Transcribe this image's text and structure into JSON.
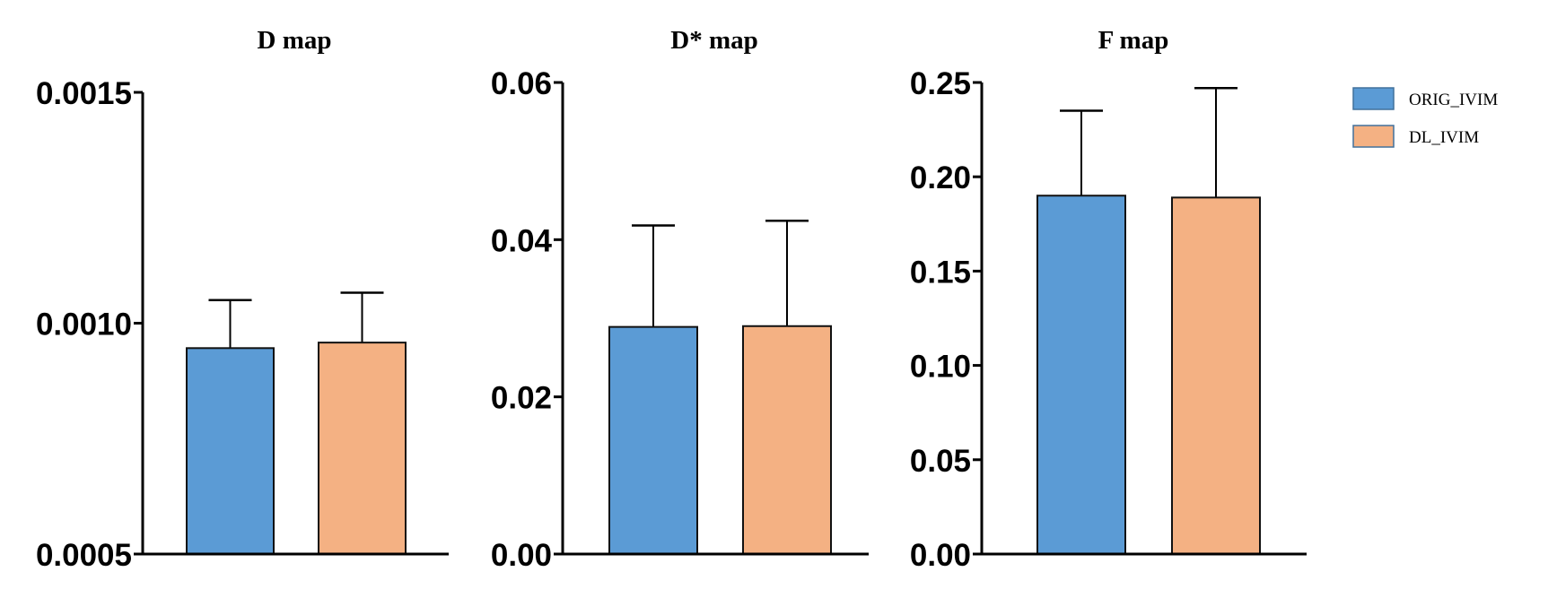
{
  "chart_data": [
    {
      "type": "bar",
      "title": "D map",
      "categories": [
        "ORIG_IVIM",
        "DL_IVIM"
      ],
      "values": [
        0.000946,
        0.000958
      ],
      "error_upper": [
        0.00105,
        0.001066
      ],
      "ylim": [
        0.0005,
        0.0015
      ],
      "yticks": [
        "0.0005",
        "0.0010",
        "0.0015"
      ],
      "ytick_values": [
        0.0005,
        0.001,
        0.0015
      ]
    },
    {
      "type": "bar",
      "title": "D* map",
      "categories": [
        "ORIG_IVIM",
        "DL_IVIM"
      ],
      "values": [
        0.0289,
        0.029
      ],
      "error_upper": [
        0.0418,
        0.0424
      ],
      "ylim": [
        0,
        0.06
      ],
      "yticks": [
        "0.00",
        "0.02",
        "0.04",
        "0.06"
      ],
      "ytick_values": [
        0,
        0.02,
        0.04,
        0.06
      ]
    },
    {
      "type": "bar",
      "title": "F map",
      "categories": [
        "ORIG_IVIM",
        "DL_IVIM"
      ],
      "values": [
        0.19,
        0.189
      ],
      "error_upper": [
        0.235,
        0.247
      ],
      "ylim": [
        0,
        0.25
      ],
      "yticks": [
        "0.00",
        "0.05",
        "0.10",
        "0.15",
        "0.20",
        "0.25"
      ],
      "ytick_values": [
        0,
        0.05,
        0.1,
        0.15,
        0.2,
        0.25
      ]
    }
  ],
  "legend": {
    "placement": "top-right",
    "items": [
      {
        "label": "ORIG_IVIM",
        "color": "#5b9bd5"
      },
      {
        "label": "DL_IVIM",
        "color": "#f4b183"
      }
    ]
  },
  "grid": false
}
